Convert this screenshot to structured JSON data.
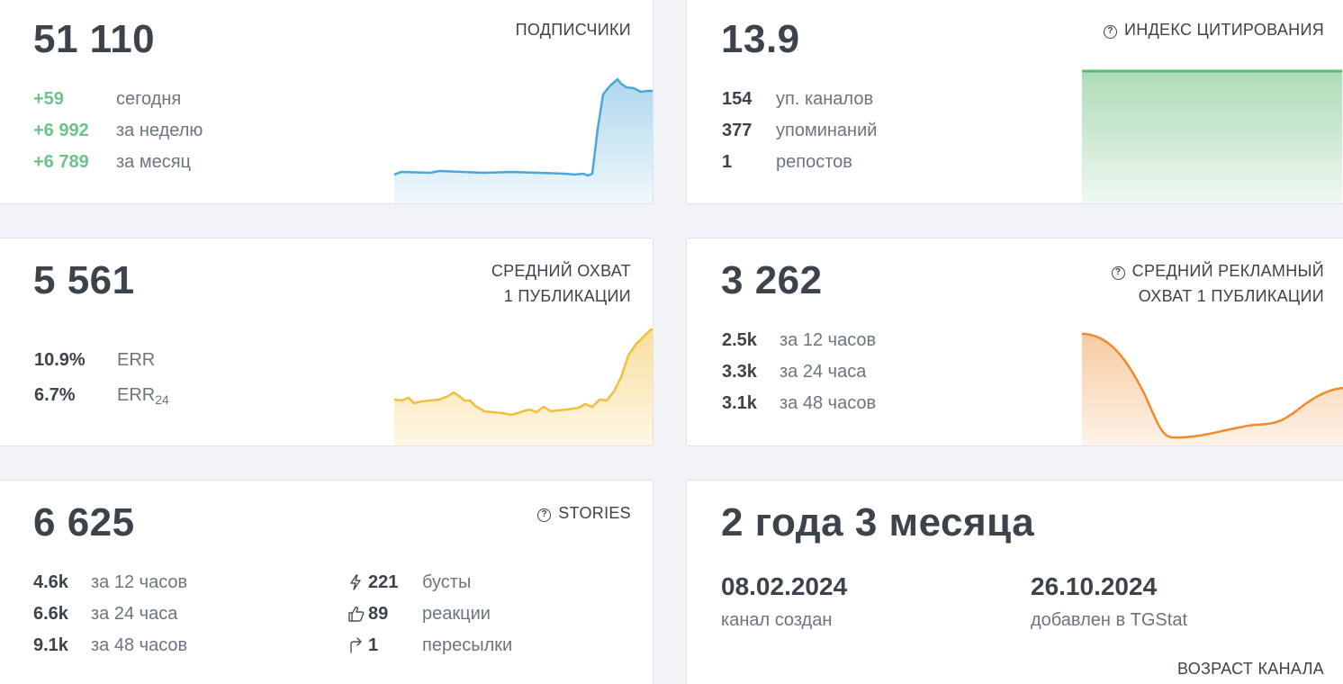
{
  "subscribers": {
    "value": "51 110",
    "label": "ПОДПИСЧИКИ",
    "rows": [
      {
        "value": "+59",
        "text": "сегодня"
      },
      {
        "value": "+6 992",
        "text": "за неделю"
      },
      {
        "value": "+6 789",
        "text": "за месяц"
      }
    ],
    "color": "#4ca7d8"
  },
  "citation": {
    "value": "13.9",
    "label": "ИНДЕКС ЦИТИРОВАНИЯ",
    "rows": [
      {
        "value": "154",
        "text": "уп. каналов"
      },
      {
        "value": "377",
        "text": "упоминаний"
      },
      {
        "value": "1",
        "text": "репостов"
      }
    ],
    "color": "#5cb870"
  },
  "reach": {
    "value": "5 561",
    "label_line1": "СРЕДНИЙ ОХВАТ",
    "label_line2": "1 ПУБЛИКАЦИИ",
    "rows": [
      {
        "value": "10.9%",
        "text": "ERR",
        "sub": ""
      },
      {
        "value": "6.7%",
        "text": "ERR",
        "sub": "24"
      }
    ],
    "color": "#f2bf3c"
  },
  "ad_reach": {
    "value": "3 262",
    "label_line1": "СРЕДНИЙ РЕКЛАМНЫЙ",
    "label_line2": "ОХВАТ 1 ПУБЛИКАЦИИ",
    "rows": [
      {
        "value": "2.5k",
        "text": "за 12 часов"
      },
      {
        "value": "3.3k",
        "text": "за 24 часа"
      },
      {
        "value": "3.1k",
        "text": "за 48 часов"
      }
    ],
    "color": "#ef8b2c"
  },
  "stories": {
    "value": "6 625",
    "label": "STORIES",
    "rows": [
      {
        "value": "4.6k",
        "text": "за 12 часов"
      },
      {
        "value": "6.6k",
        "text": "за 24 часа"
      },
      {
        "value": "9.1k",
        "text": "за 48 часов"
      }
    ],
    "extra": [
      {
        "icon": "lightning-icon",
        "value": "221",
        "text": "бусты"
      },
      {
        "icon": "thumbs-up-icon",
        "value": "89",
        "text": "реакции"
      },
      {
        "icon": "forward-arrow-icon",
        "value": "1",
        "text": "пересылки"
      }
    ]
  },
  "age": {
    "value": "2 года 3 месяца",
    "created_date": "08.02.2024",
    "created_label": "канал создан",
    "added_date": "26.10.2024",
    "added_label": "добавлен в TGStat",
    "label": "ВОЗРАСТ КАНАЛА"
  }
}
